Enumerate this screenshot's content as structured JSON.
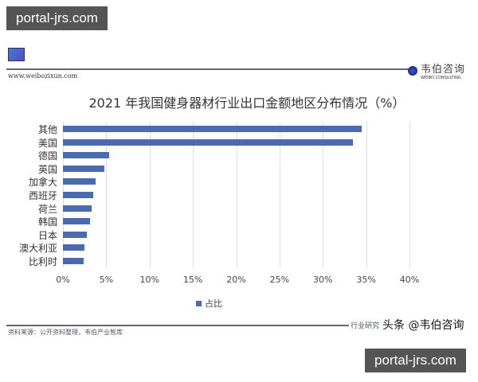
{
  "overlay": {
    "top_badge": "portal-jrs.com",
    "bottom_badge": "portal-jrs.com",
    "toutiao": "头条 @韦伯咨询"
  },
  "header": {
    "url": "www.weibozixun.com",
    "logo_cn": "韦伯咨询",
    "logo_en": "WEIBO CONSULTING"
  },
  "footer": {
    "source": "资料来源：公开资料整理，韦伯产业智库",
    "right_text": "行业研究"
  },
  "chart_data": {
    "type": "bar",
    "orientation": "horizontal",
    "title": "2021 年我国健身器材行业出口金额地区分布情况（%）",
    "categories": [
      "其他",
      "美国",
      "德国",
      "英国",
      "加拿大",
      "西班牙",
      "荷兰",
      "韩国",
      "日本",
      "澳大利亚",
      "比利时"
    ],
    "series": [
      {
        "name": "占比",
        "values": [
          34.5,
          33.5,
          5.3,
          4.8,
          3.8,
          3.5,
          3.3,
          3.1,
          2.8,
          2.5,
          2.4
        ],
        "color": "#4a6cae"
      }
    ],
    "xlabel": "",
    "ylabel": "",
    "xlim": [
      0,
      40
    ],
    "xticks": [
      "0%",
      "5%",
      "10%",
      "15%",
      "20%",
      "25%",
      "30%",
      "35%",
      "40%"
    ],
    "grid": true,
    "legend_position": "bottom"
  }
}
